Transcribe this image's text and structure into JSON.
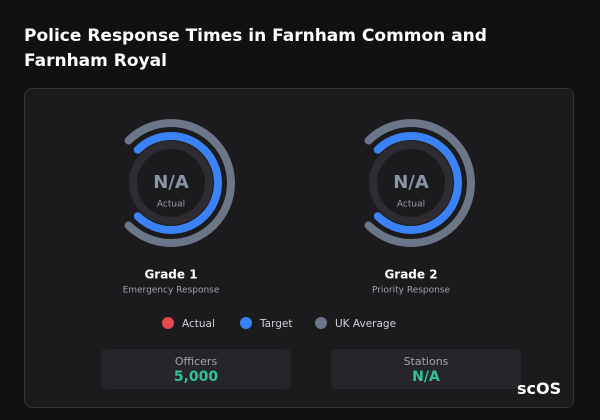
{
  "header": {
    "title": "Police Response Times in Farnham Common and Farnham Royal"
  },
  "gauges": [
    {
      "value": "N/A",
      "value_label": "Actual",
      "name": "Grade 1",
      "subtitle": "Emergency Response"
    },
    {
      "value": "N/A",
      "value_label": "Actual",
      "name": "Grade 2",
      "subtitle": "Priority Response"
    }
  ],
  "legend": [
    {
      "label": "Actual",
      "color": "#e5484d"
    },
    {
      "label": "Target",
      "color": "#3b82f6"
    },
    {
      "label": "UK Average",
      "color": "#6b7688"
    }
  ],
  "stats": [
    {
      "label": "Officers",
      "value": "5,000"
    },
    {
      "label": "Stations",
      "value": "N/A"
    }
  ],
  "logo": {
    "text": "scOS"
  }
}
